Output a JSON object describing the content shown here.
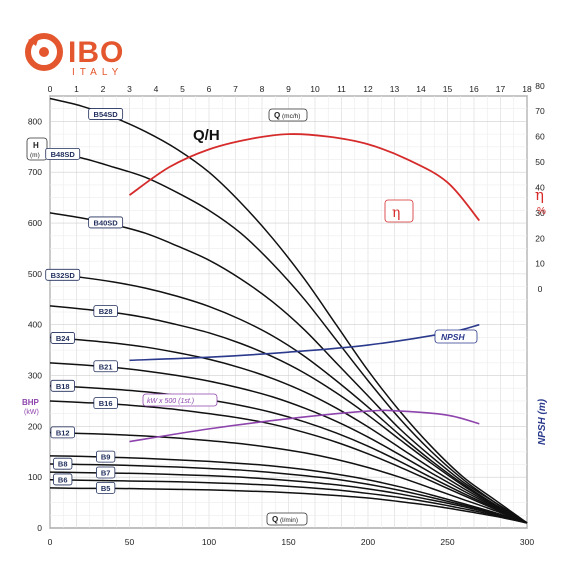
{
  "brand": {
    "name": "IBO",
    "country": "ITALY",
    "accent_color": "#e4572e"
  },
  "chart_data": {
    "type": "line",
    "title": "Q/H",
    "x_top": {
      "label": "Q",
      "unit": "(mc/h)",
      "range": [
        0,
        18
      ],
      "ticks": [
        "0",
        "1",
        "2",
        "3",
        "4",
        "5",
        "6",
        "7",
        "8",
        "9",
        "10",
        "11",
        "12",
        "13",
        "14",
        "15",
        "16",
        "17",
        "18"
      ]
    },
    "x_bottom": {
      "label": "Q",
      "unit": "(l/min)",
      "range": [
        0,
        300
      ],
      "ticks": [
        "0",
        "50",
        "100",
        "150",
        "200",
        "250",
        "300"
      ]
    },
    "y_left": {
      "label": "H",
      "unit": "(m)",
      "range": [
        0,
        850
      ],
      "ticks": [
        "0",
        "100",
        "200",
        "300",
        "400",
        "500",
        "600",
        "700",
        "800"
      ]
    },
    "y_right_eff": {
      "label": "η",
      "unit": "%",
      "range": [
        0,
        80
      ],
      "ticks": [
        "0",
        "10",
        "20",
        "30",
        "40",
        "50",
        "60",
        "70",
        "80"
      ]
    },
    "y_right_npsh": {
      "label": "NPSH (m)"
    },
    "bhp_label": {
      "label": "BHP",
      "unit": "(kW)"
    },
    "series": [
      {
        "name": "B54SD",
        "x": [
          0,
          20,
          40,
          60,
          80,
          100,
          120,
          140,
          160,
          180,
          200,
          220,
          240,
          260,
          280,
          300
        ],
        "y": [
          845,
          830,
          808,
          780,
          745,
          700,
          640,
          570,
          490,
          400,
          310,
          230,
          160,
          100,
          55,
          10
        ]
      },
      {
        "name": "B48SD",
        "x": [
          0,
          20,
          40,
          60,
          80,
          100,
          120,
          140,
          160,
          180,
          200,
          220,
          240,
          260,
          280,
          300
        ],
        "y": [
          740,
          728,
          710,
          690,
          660,
          625,
          580,
          520,
          450,
          370,
          290,
          215,
          150,
          95,
          50,
          10
        ]
      },
      {
        "name": "B40SD",
        "x": [
          0,
          20,
          40,
          60,
          80,
          100,
          120,
          140,
          160,
          180,
          200,
          220,
          240,
          260,
          280,
          300
        ],
        "y": [
          620,
          610,
          597,
          580,
          555,
          527,
          490,
          445,
          390,
          325,
          260,
          195,
          140,
          90,
          50,
          10
        ]
      },
      {
        "name": "B32SD",
        "x": [
          0,
          20,
          40,
          60,
          80,
          100,
          120,
          140,
          160,
          180,
          200,
          220,
          240,
          260,
          280,
          300
        ],
        "y": [
          500,
          493,
          484,
          472,
          456,
          436,
          410,
          378,
          338,
          290,
          238,
          183,
          132,
          86,
          46,
          10
        ]
      },
      {
        "name": "B28",
        "x": [
          0,
          20,
          40,
          60,
          80,
          100,
          120,
          140,
          160,
          180,
          200,
          220,
          240,
          260,
          280,
          300
        ],
        "y": [
          437,
          431,
          424,
          414,
          400,
          384,
          363,
          337,
          305,
          266,
          222,
          174,
          127,
          83,
          45,
          10
        ]
      },
      {
        "name": "B24",
        "x": [
          0,
          20,
          40,
          60,
          80,
          100,
          120,
          140,
          160,
          180,
          200,
          220,
          240,
          260,
          280,
          300
        ],
        "y": [
          375,
          370,
          364,
          356,
          345,
          332,
          315,
          294,
          268,
          236,
          199,
          158,
          117,
          78,
          43,
          10
        ]
      },
      {
        "name": "B21",
        "x": [
          0,
          20,
          40,
          60,
          80,
          100,
          120,
          140,
          160,
          180,
          200,
          220,
          240,
          260,
          280,
          300
        ],
        "y": [
          325,
          321,
          316,
          309,
          300,
          289,
          275,
          258,
          236,
          210,
          179,
          144,
          108,
          73,
          41,
          10
        ]
      },
      {
        "name": "B18",
        "x": [
          0,
          20,
          40,
          60,
          80,
          100,
          120,
          140,
          160,
          180,
          200,
          220,
          240,
          260,
          280,
          300
        ],
        "y": [
          280,
          277,
          273,
          268,
          261,
          252,
          241,
          227,
          209,
          187,
          161,
          131,
          99,
          68,
          39,
          10
        ]
      },
      {
        "name": "B16",
        "x": [
          0,
          20,
          40,
          60,
          80,
          100,
          120,
          140,
          160,
          180,
          200,
          220,
          240,
          260,
          280,
          300
        ],
        "y": [
          250,
          247,
          244,
          239,
          233,
          225,
          216,
          204,
          188,
          169,
          146,
          120,
          92,
          64,
          37,
          10
        ]
      },
      {
        "name": "B12",
        "x": [
          0,
          20,
          40,
          60,
          80,
          100,
          120,
          140,
          160,
          180,
          200,
          220,
          240,
          260,
          280,
          300
        ],
        "y": [
          188,
          186,
          184,
          181,
          177,
          172,
          166,
          158,
          148,
          135,
          119,
          100,
          78,
          56,
          34,
          10
        ]
      },
      {
        "name": "B9",
        "x": [
          0,
          20,
          40,
          60,
          80,
          100,
          120,
          140,
          160,
          180,
          200,
          220,
          240,
          260,
          280,
          300
        ],
        "y": [
          142,
          141,
          139,
          137,
          134,
          131,
          127,
          122,
          115,
          106,
          95,
          81,
          65,
          48,
          30,
          10
        ]
      },
      {
        "name": "B8",
        "x": [
          0,
          20,
          40,
          60,
          80,
          100,
          120,
          140,
          160,
          180,
          200,
          220,
          240,
          260,
          280,
          300
        ],
        "y": [
          126,
          125,
          124,
          122,
          120,
          117,
          114,
          109,
          103,
          96,
          86,
          74,
          60,
          45,
          29,
          10
        ]
      },
      {
        "name": "B7",
        "x": [
          0,
          20,
          40,
          60,
          80,
          100,
          120,
          140,
          160,
          180,
          200,
          220,
          240,
          260,
          280,
          300
        ],
        "y": [
          110,
          109,
          108,
          107,
          105,
          103,
          100,
          96,
          91,
          85,
          77,
          67,
          55,
          42,
          27,
          10
        ]
      },
      {
        "name": "B6",
        "x": [
          0,
          20,
          40,
          60,
          80,
          100,
          120,
          140,
          160,
          180,
          200,
          220,
          240,
          260,
          280,
          300
        ],
        "y": [
          95,
          94,
          93,
          92,
          91,
          89,
          87,
          84,
          80,
          75,
          68,
          60,
          50,
          38,
          25,
          10
        ]
      },
      {
        "name": "B5",
        "x": [
          0,
          20,
          40,
          60,
          80,
          100,
          120,
          140,
          160,
          180,
          200,
          220,
          240,
          260,
          280,
          300
        ],
        "y": [
          79,
          78,
          78,
          77,
          76,
          75,
          73,
          71,
          68,
          64,
          59,
          52,
          44,
          34,
          23,
          10
        ]
      }
    ],
    "efficiency": {
      "label": "η",
      "x": [
        50,
        75,
        100,
        125,
        150,
        175,
        200,
        225,
        250,
        270
      ],
      "y": [
        37,
        48,
        55,
        59,
        61,
        60,
        57,
        51,
        42,
        27
      ]
    },
    "npsh": {
      "label": "NPSH",
      "x": [
        50,
        100,
        150,
        200,
        250,
        270
      ],
      "y": [
        0,
        0.3,
        0.8,
        1.5,
        2.7,
        3.5
      ]
    },
    "power": {
      "label": "kW x 500 (1st.)",
      "x": [
        50,
        100,
        150,
        200,
        220,
        250,
        270
      ],
      "y": [
        170,
        195,
        215,
        230,
        230,
        222,
        205
      ]
    },
    "grid": true
  }
}
